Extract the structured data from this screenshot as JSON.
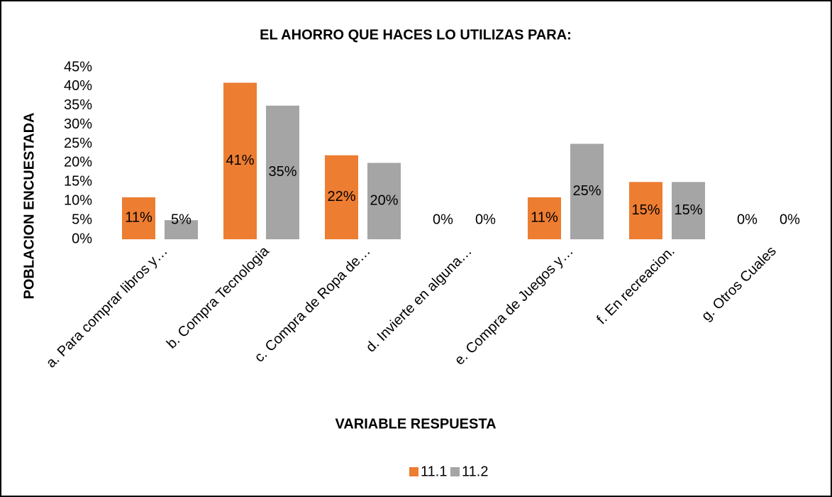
{
  "chart_data": {
    "type": "bar",
    "title": "EL AHORRO QUE HACES LO UTILIZAS PARA:",
    "x_label": "VARIABLE RESPUESTA",
    "y_label": "POBLACION ENCUESTADA",
    "categories": [
      "a. Para comprar libros y…",
      "b. Compra Tecnologia",
      "c. Compra de Ropa de…",
      "d. Invierte en alguna…",
      "e. Compra de Juegos y…",
      "f. En recreacion.",
      "g. Otros Cuales"
    ],
    "series": [
      {
        "name": "11.1",
        "color": "#ed7d31",
        "values": [
          11,
          41,
          22,
          0,
          11,
          15,
          0
        ],
        "value_labels": [
          "11%",
          "41%",
          "22%",
          "0%",
          "11%",
          "15%",
          "0%"
        ]
      },
      {
        "name": "11.2",
        "color": "#a5a5a5",
        "values": [
          5,
          35,
          20,
          0,
          25,
          15,
          0
        ],
        "value_labels": [
          "5%",
          "35%",
          "20%",
          "0%",
          "25%",
          "15%",
          "0%"
        ]
      }
    ],
    "ylim": [
      0,
      45
    ],
    "yticks": [
      {
        "value": 0,
        "label": "0%"
      },
      {
        "value": 5,
        "label": "5%"
      },
      {
        "value": 10,
        "label": "10%"
      },
      {
        "value": 15,
        "label": "15%"
      },
      {
        "value": 20,
        "label": "20%"
      },
      {
        "value": 25,
        "label": "25%"
      },
      {
        "value": 30,
        "label": "30%"
      },
      {
        "value": 35,
        "label": "35%"
      },
      {
        "value": 40,
        "label": "40%"
      },
      {
        "value": 45,
        "label": "45%"
      }
    ],
    "grid": false,
    "legend": "bottom"
  }
}
